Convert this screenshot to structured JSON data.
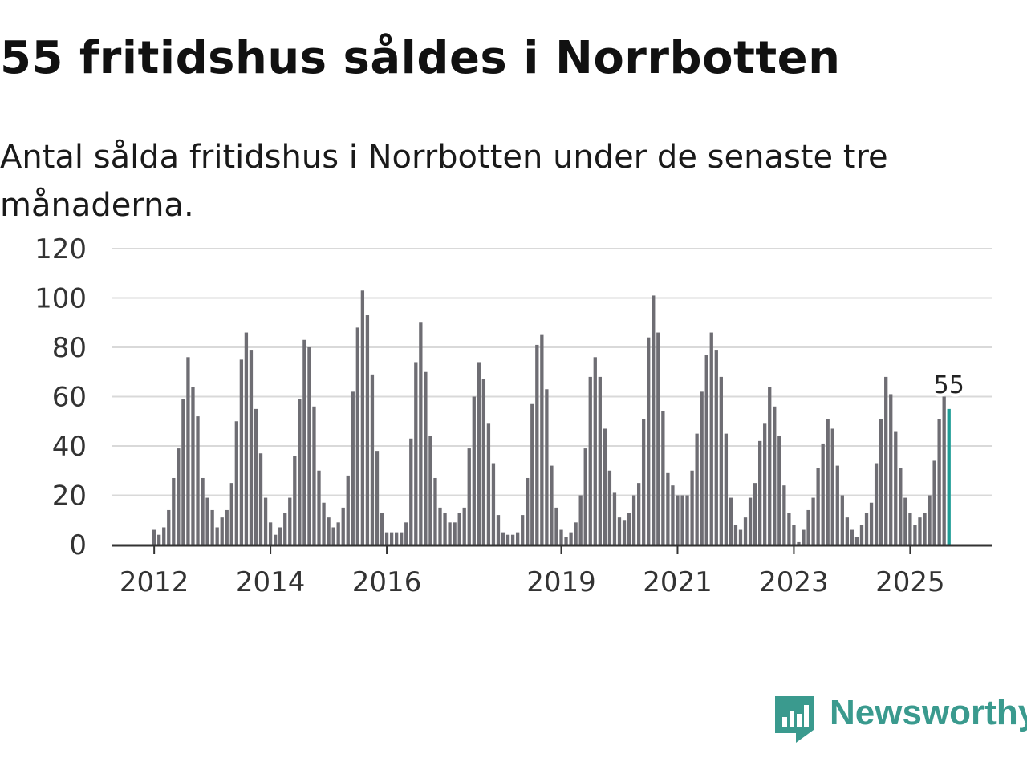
{
  "title": "55 fritidshus såldes i Norrbotten",
  "subtitle": "Antal sålda fritidshus i Norrbotten under de senaste tre månaderna.",
  "brand": {
    "name": "Newsworthy",
    "color": "#3a9a8e",
    "icon": "newsworthy-logo-icon"
  },
  "colors": {
    "bar": "#6e6d73",
    "highlight": "#1d9d96",
    "grid": "#d9d9d9",
    "axis": "#333333"
  },
  "chart_data": {
    "type": "bar",
    "title": "55 fritidshus såldes i Norrbotten",
    "subtitle": "Antal sålda fritidshus i Norrbotten under de senaste tre månaderna.",
    "xlabel": "",
    "ylabel": "",
    "ylim": [
      0,
      120
    ],
    "yticks": [
      0,
      20,
      40,
      60,
      80,
      100,
      120
    ],
    "grid": true,
    "start": "2012-01",
    "frequency": "monthly",
    "xticks": [
      {
        "label": "2012",
        "index": 0
      },
      {
        "label": "2014",
        "index": 24
      },
      {
        "label": "2016",
        "index": 48
      },
      {
        "label": "2019",
        "index": 84
      },
      {
        "label": "2021",
        "index": 108
      },
      {
        "label": "2023",
        "index": 132
      },
      {
        "label": "2025",
        "index": 156
      }
    ],
    "values": [
      6,
      4,
      7,
      14,
      27,
      39,
      59,
      76,
      64,
      52,
      27,
      19,
      14,
      7,
      11,
      14,
      25,
      50,
      75,
      86,
      79,
      55,
      37,
      19,
      9,
      4,
      7,
      13,
      19,
      36,
      59,
      83,
      80,
      56,
      30,
      17,
      11,
      7,
      9,
      15,
      28,
      62,
      88,
      103,
      93,
      69,
      38,
      13,
      5,
      5,
      5,
      5,
      9,
      43,
      74,
      90,
      70,
      44,
      27,
      15,
      13,
      9,
      9,
      13,
      15,
      39,
      60,
      74,
      67,
      49,
      33,
      12,
      5,
      4,
      4,
      5,
      12,
      27,
      57,
      81,
      85,
      63,
      32,
      15,
      6,
      3,
      5,
      9,
      20,
      39,
      68,
      76,
      68,
      47,
      30,
      21,
      11,
      10,
      13,
      20,
      25,
      51,
      84,
      101,
      86,
      54,
      29,
      24,
      20,
      20,
      20,
      30,
      45,
      62,
      77,
      86,
      79,
      68,
      45,
      19,
      8,
      6,
      11,
      19,
      25,
      42,
      49,
      64,
      56,
      44,
      24,
      13,
      8,
      1,
      6,
      14,
      19,
      31,
      41,
      51,
      47,
      32,
      20,
      11,
      6,
      3,
      8,
      13,
      17,
      33,
      51,
      68,
      61,
      46,
      31,
      19,
      13,
      8,
      11,
      13,
      20,
      34,
      51,
      60,
      55
    ],
    "highlight": {
      "index": 164,
      "value": 55,
      "label": "55"
    }
  }
}
